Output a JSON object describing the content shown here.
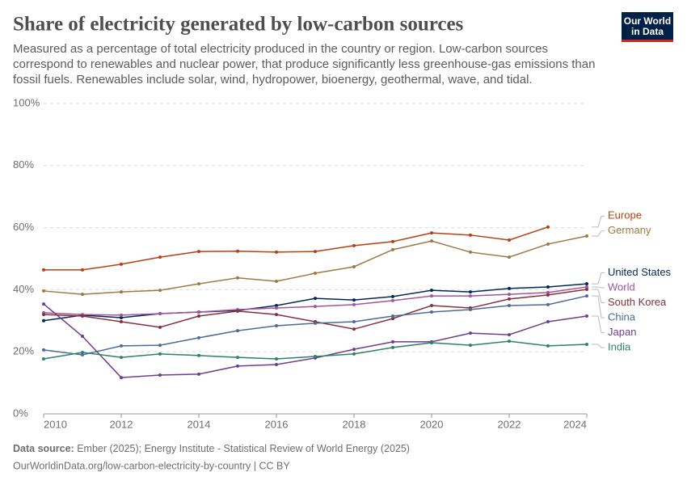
{
  "header": {
    "title": "Share of electricity generated by low-carbon sources",
    "subtitle": [
      "Measured as a percentage of total electricity produced in the country or region. Low-carbon sources",
      "correspond to renewables and nuclear power, that produce significantly less greenhouse-gas emissions than",
      "fossil fuels. Renewables include solar, wind, hydropower, bioenergy, geothermal, wave, and tidal."
    ],
    "logo": [
      "Our World",
      "in Data"
    ]
  },
  "chart_data": {
    "type": "line",
    "x": [
      2010,
      2011,
      2012,
      2013,
      2014,
      2015,
      2016,
      2017,
      2018,
      2019,
      2020,
      2021,
      2022,
      2023,
      2024
    ],
    "xlim": [
      2010,
      2024
    ],
    "xticks": [
      2010,
      2012,
      2014,
      2016,
      2018,
      2020,
      2022,
      2024
    ],
    "ylim": [
      0,
      100
    ],
    "yticks": [
      {
        "value": 0,
        "label": "0%"
      },
      {
        "value": 20,
        "label": "20%"
      },
      {
        "value": 40,
        "label": "40%"
      },
      {
        "value": 60,
        "label": "60%"
      },
      {
        "value": 80,
        "label": "80%"
      },
      {
        "value": 100,
        "label": "100%"
      }
    ],
    "grid": true,
    "series": [
      {
        "name": "Europe",
        "color": "#b83f12",
        "values": [
          46.4,
          46.4,
          48.2,
          50.5,
          52.3,
          52.4,
          52.1,
          52.3,
          54.2,
          55.5,
          58.3,
          57.6,
          56.0,
          60.2,
          null
        ]
      },
      {
        "name": "Germany",
        "color": "#9c7a43",
        "values": [
          39.6,
          38.5,
          39.3,
          39.8,
          41.9,
          43.8,
          42.7,
          45.3,
          47.4,
          52.9,
          55.7,
          52.1,
          50.5,
          54.7,
          57.3
        ]
      },
      {
        "name": "United States",
        "color": "#00295b",
        "values": [
          30.0,
          31.8,
          31.0,
          32.3,
          32.8,
          33.3,
          34.9,
          37.2,
          36.7,
          37.8,
          39.8,
          39.3,
          40.4,
          40.9,
          41.9
        ]
      },
      {
        "name": "World",
        "color": "#a2559c",
        "values": [
          32.6,
          32.0,
          31.8,
          32.3,
          32.8,
          33.6,
          34.1,
          34.6,
          35.2,
          36.5,
          38.0,
          38.0,
          38.5,
          39.1,
          40.9
        ]
      },
      {
        "name": "South Korea",
        "color": "#883039",
        "values": [
          32.0,
          31.5,
          29.7,
          27.9,
          31.5,
          33.1,
          32.0,
          29.7,
          27.3,
          30.7,
          34.9,
          34.1,
          37.0,
          38.3,
          40.1
        ]
      },
      {
        "name": "China",
        "color": "#4c6a9c",
        "values": [
          20.6,
          19.0,
          21.9,
          22.1,
          24.5,
          26.8,
          28.4,
          29.2,
          29.7,
          31.5,
          32.8,
          33.6,
          34.9,
          35.2,
          38.0
        ]
      },
      {
        "name": "Japan",
        "color": "#6d3e91",
        "values": [
          35.4,
          25.0,
          11.7,
          12.5,
          12.8,
          15.4,
          15.9,
          18.0,
          20.8,
          23.2,
          23.2,
          26.0,
          25.5,
          29.7,
          31.5
        ]
      },
      {
        "name": "India",
        "color": "#2c8465",
        "values": [
          17.7,
          19.8,
          18.2,
          19.3,
          18.8,
          18.2,
          17.7,
          18.5,
          19.3,
          21.4,
          22.9,
          22.1,
          23.4,
          21.9,
          22.4
        ]
      }
    ]
  },
  "footer": {
    "source_label": "Data source:",
    "source": "Ember (2025); Energy Institute - Statistical Review of World Energy (2025)",
    "url": "OurWorldinData.org/low-carbon-electricity-by-country | CC BY"
  }
}
